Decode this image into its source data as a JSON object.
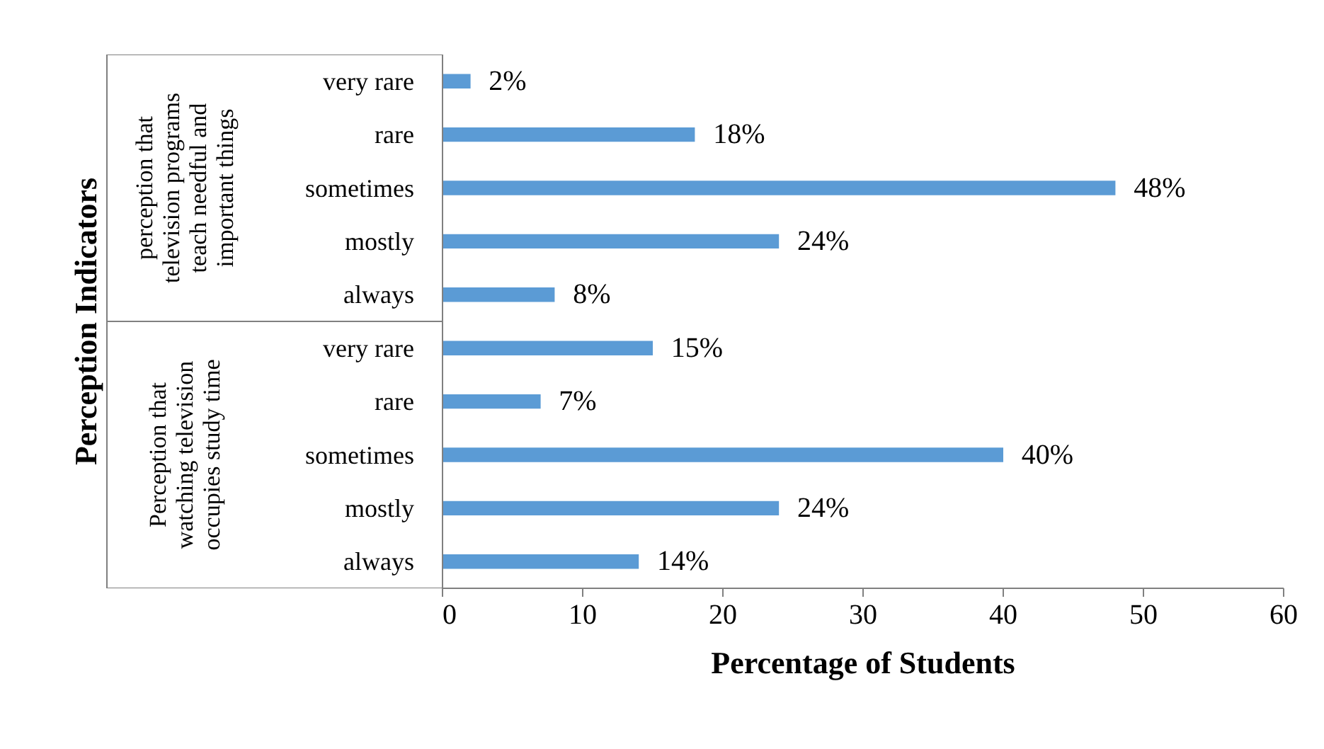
{
  "chart_data": {
    "type": "bar",
    "orientation": "horizontal",
    "categories": [
      "very rare",
      "rare",
      "sometimes",
      "mostly",
      "always",
      "very rare",
      "rare",
      "sometimes",
      "mostly",
      "always"
    ],
    "values": [
      2,
      18,
      48,
      24,
      8,
      15,
      7,
      40,
      24,
      14
    ],
    "value_labels": [
      "2%",
      "18%",
      "48%",
      "24%",
      "8%",
      "15%",
      "7%",
      "40%",
      "24%",
      "14%"
    ],
    "color": "#5b9bd5",
    "xlim": [
      0,
      60
    ],
    "xticks": [
      0,
      10,
      20,
      30,
      40,
      50,
      60
    ],
    "xlabel": "Percentage of Students",
    "annotations": [
      "Perception Indicators",
      "perception that\ntelevision programs\nteach needful and\nimportant things",
      "Perception that\nwatching television\noccupies study time"
    ]
  }
}
